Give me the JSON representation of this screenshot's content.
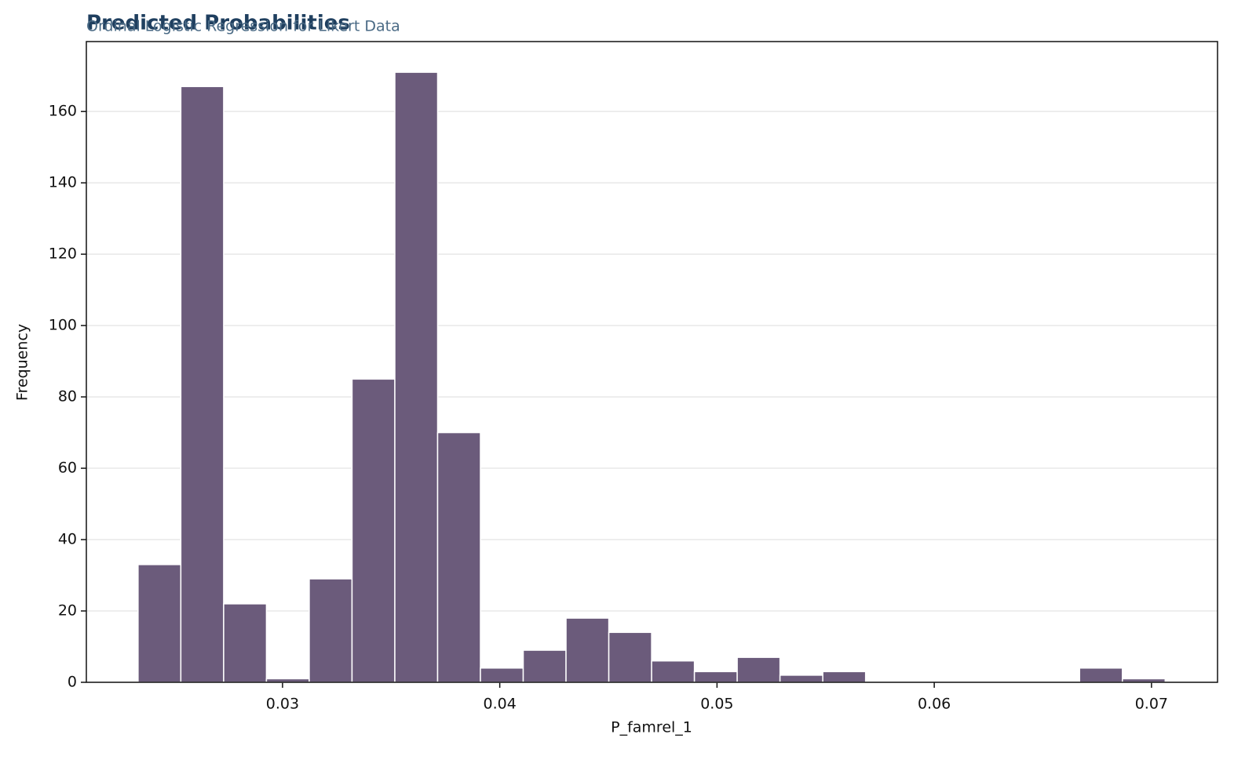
{
  "chart_data": {
    "type": "histogram",
    "title": "Predicted Probabilities",
    "subtitle": "Ordinal Logistic Regression for Likert Data",
    "x_label": "P_famrel_1",
    "y_label": "Frequency",
    "bins": [
      0.02335,
      0.02532,
      0.02729,
      0.02926,
      0.03123,
      0.0332,
      0.03517,
      0.03714,
      0.03911,
      0.04108,
      0.04305,
      0.04502,
      0.04699,
      0.04896,
      0.05093,
      0.0529,
      0.05487,
      0.05684,
      0.05881,
      0.06078,
      0.06275,
      0.06472,
      0.06669,
      0.06866,
      0.07063
    ],
    "values": [
      33,
      167,
      22,
      1,
      29,
      85,
      171,
      70,
      4,
      9,
      18,
      14,
      6,
      3,
      7,
      2,
      3,
      0,
      0,
      0,
      0,
      0,
      4,
      1
    ],
    "color": "#6b5b7b",
    "xlim": [
      0.02097,
      0.07304
    ],
    "xticks": [
      0.03,
      0.04,
      0.05,
      0.06,
      0.07
    ],
    "ylim": [
      0,
      179.6
    ],
    "yticks": [
      0,
      20,
      40,
      60,
      80,
      100,
      120,
      140,
      160
    ],
    "grid": true
  }
}
